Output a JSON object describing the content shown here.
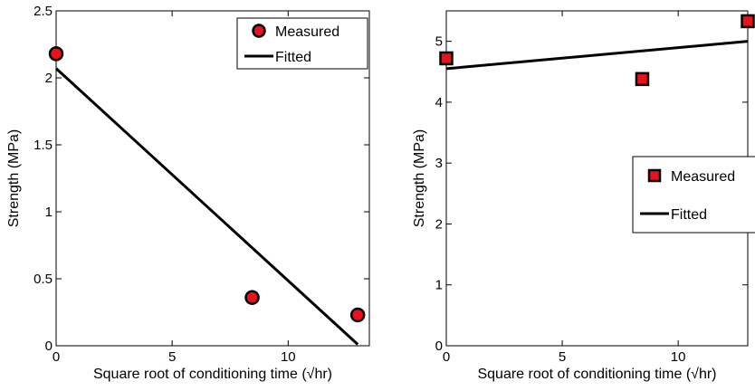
{
  "chart_data": [
    {
      "type": "scatter",
      "xlabel": "Square root of conditioning time (√hr)",
      "ylabel": "Strength (MPa)",
      "xlim": [
        0,
        13.5
      ],
      "ylim": [
        0,
        2.5
      ],
      "x_ticks": [
        0,
        5,
        10
      ],
      "y_ticks": [
        0,
        0.5,
        1,
        1.5,
        2,
        2.5
      ],
      "y_tick_labels": [
        "0",
        "0.5",
        "1",
        "1.5",
        "2",
        "2.5"
      ],
      "legend_position": "top-right",
      "series": [
        {
          "name": "Measured",
          "kind": "points",
          "marker": "circle",
          "color": "#e8121c",
          "x": [
            0,
            8.45,
            13
          ],
          "y": [
            2.18,
            0.36,
            0.23
          ]
        },
        {
          "name": "Fitted",
          "kind": "line",
          "color": "#000000",
          "x": [
            0,
            13
          ],
          "y": [
            2.07,
            0.01
          ]
        }
      ]
    },
    {
      "type": "scatter",
      "xlabel": "Square root of conditioning time (√hr)",
      "ylabel": "Strength (MPa)",
      "xlim": [
        0,
        13
      ],
      "ylim": [
        0,
        5.5
      ],
      "x_ticks": [
        0,
        5,
        10
      ],
      "y_ticks": [
        0,
        1,
        2,
        3,
        4,
        5
      ],
      "y_tick_labels": [
        "0",
        "1",
        "2",
        "3",
        "4",
        "5"
      ],
      "legend_position": "right",
      "series": [
        {
          "name": "Measured",
          "kind": "points",
          "marker": "square",
          "color": "#e8121c",
          "x": [
            0,
            8.45,
            13
          ],
          "y": [
            4.72,
            4.38,
            5.33
          ]
        },
        {
          "name": "Fitted",
          "kind": "line",
          "color": "#000000",
          "x": [
            0,
            13
          ],
          "y": [
            4.55,
            5.0
          ]
        }
      ]
    }
  ]
}
